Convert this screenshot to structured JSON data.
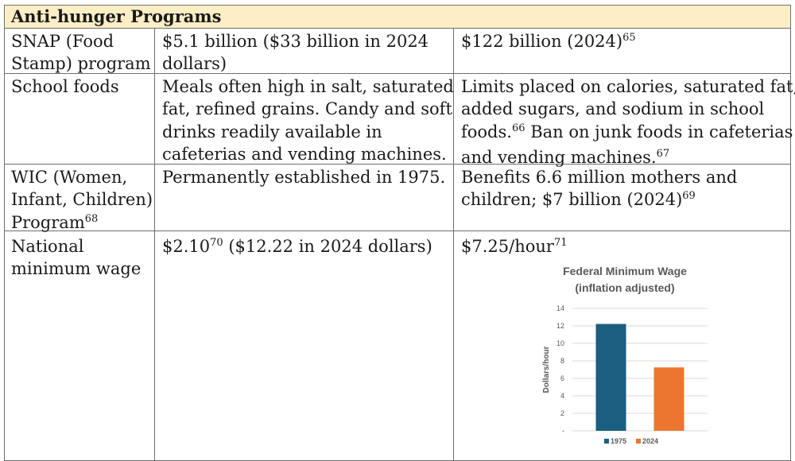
{
  "section_title": "Anti-hunger Programs",
  "rows": [
    {
      "program_lines": [
        "SNAP (Food",
        "Stamp) program"
      ],
      "then_lines": [
        "$5.1 billion ($33 billion in 2024",
        "dollars)"
      ],
      "now": {
        "text": "$122 billion (2024)",
        "sup": "65"
      }
    },
    {
      "program_lines": [
        "School foods"
      ],
      "then_lines": [
        "Meals often high in salt, saturated",
        "fat, refined grains. Candy and soft",
        "drinks readily available in",
        "cafeterias and vending machines."
      ],
      "now_lines": [
        {
          "text": "Limits placed on calories, saturated fat,",
          "sup": ""
        },
        {
          "text": "added sugars, and sodium in school",
          "sup": ""
        },
        {
          "text": "foods.",
          "sup": "66",
          "after": " Ban on junk foods in cafeterias"
        },
        {
          "text": "and vending machines.",
          "sup": "67"
        }
      ]
    },
    {
      "program_lines": [
        "WIC (Women,",
        "Infant, Children)"
      ],
      "program_last": {
        "text": "Program",
        "sup": "68"
      },
      "then_lines": [
        "Permanently established in 1975."
      ],
      "now_lines": [
        {
          "text": "Benefits 6.6 million mothers and",
          "sup": ""
        },
        {
          "text": "children; $7 billion (2024)",
          "sup": "69"
        }
      ]
    },
    {
      "program_lines": [
        "National",
        "minimum wage"
      ],
      "then": {
        "pre": "$2.10",
        "sup": "70",
        "post": " ($12.22 in 2024 dollars)"
      },
      "now": {
        "text": "$7.25/hour",
        "sup": "71"
      }
    }
  ],
  "chart_data": {
    "type": "bar",
    "title": "Federal Minimum Wage",
    "subtitle": "(inflation adjusted)",
    "ylabel": "Dollars/hour",
    "xlabel": "",
    "categories": [
      "1975",
      "2024"
    ],
    "values": [
      12.22,
      7.25
    ],
    "ylim": [
      0,
      14
    ],
    "yticks": [
      "-",
      "2",
      "4",
      "6",
      "8",
      "10",
      "12",
      "14"
    ],
    "colors": [
      "#1b5e7f",
      "#ec7630"
    ],
    "grid": true,
    "legend": "bottom"
  }
}
